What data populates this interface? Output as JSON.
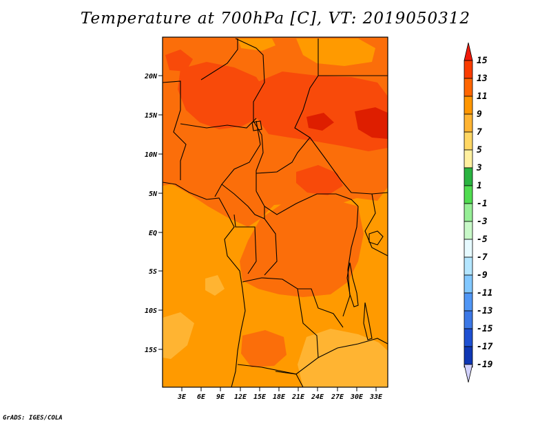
{
  "title": "Temperature at 700hPa [C], VT: 2019050312",
  "credit": "GrADS: IGES/COLA",
  "chart_data": {
    "type": "heatmap",
    "title": "Temperature at 700hPa [C], VT: 2019050312",
    "variable": "Temperature",
    "level": "700hPa",
    "units": "C",
    "valid_time": "2019050312",
    "x_tick_labels": [
      "3E",
      "6E",
      "9E",
      "12E",
      "15E",
      "18E",
      "21E",
      "24E",
      "27E",
      "30E",
      "33E"
    ],
    "y_tick_labels": [
      "20N",
      "15N",
      "10N",
      "5N",
      "EQ",
      "5S",
      "10S",
      "15S"
    ],
    "colorbar_labels": [
      "15",
      "13",
      "11",
      "9",
      "7",
      "5",
      "3",
      "1",
      "-1",
      "-3",
      "-5",
      "-7",
      "-9",
      "-11",
      "-13",
      "-15",
      "-17",
      "-19"
    ],
    "colorbar_colors": [
      "#f01a0a",
      "#fa3c00",
      "#ff6600",
      "#ff9600",
      "#ffb432",
      "#ffd764",
      "#fff0a0",
      "#2ab340",
      "#50dc50",
      "#96ee96",
      "#c8f8c8",
      "#e6faff",
      "#b4e6ff",
      "#82c8ff",
      "#5096f5",
      "#3c78e6",
      "#1e50d2",
      "#0f37b4",
      "#0a1e8c",
      "#000064",
      "#d2d2ff"
    ],
    "map_colors": {
      "lt9": "#ffb432",
      "9to11": "#ff9a00",
      "11to13": "#fb6e0a",
      "13to15": "#f84a0a",
      "gt15": "#de1e00"
    }
  }
}
